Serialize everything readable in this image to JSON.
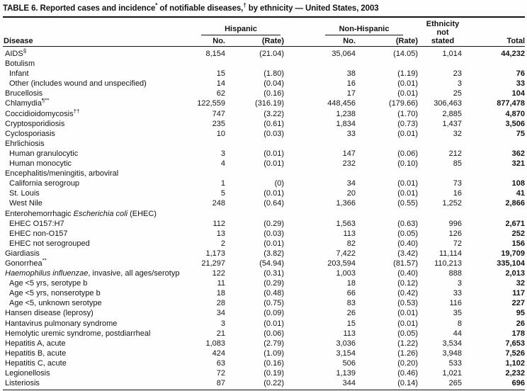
{
  "title": {
    "t1": "TABLE 6. Reported cases and incidence",
    "s1": "*",
    "t2": " of notifiable diseases,",
    "s2": "†",
    "t3": " by ethnicity — United States, 2003"
  },
  "header": {
    "disease": "Disease",
    "hispanic": "Hispanic",
    "non_hispanic": "Non-Hispanic",
    "no": "No.",
    "rate": "(Rate)",
    "ethnicity_not_stated": "Ethnicity\nnot\nstated",
    "total": "Total"
  },
  "rows": [
    {
      "pre": "AIDS",
      "sup": "§",
      "indent": 0,
      "values": [
        "8,154",
        "(21.04)",
        "35,064",
        "(14.05)",
        "1,014",
        "44,232"
      ]
    },
    {
      "pre": "Botulism",
      "indent": 0,
      "values": [
        "",
        "",
        "",
        "",
        "",
        ""
      ]
    },
    {
      "pre": "Infant",
      "indent": 1,
      "values": [
        "15",
        "(1.80)",
        "38",
        "(1.19)",
        "23",
        "76"
      ]
    },
    {
      "pre": "Other (includes wound and unspecified)",
      "indent": 1,
      "values": [
        "14",
        "(0.04)",
        "16",
        "(0.01)",
        "3",
        "33"
      ]
    },
    {
      "pre": "Brucellosis",
      "indent": 0,
      "values": [
        "62",
        "(0.16)",
        "17",
        "(0.01)",
        "25",
        "104"
      ]
    },
    {
      "pre": "Chlamydia",
      "sup": "¶**",
      "indent": 0,
      "values": [
        "122,559",
        "(316.19)",
        "448,456",
        "(179.66)",
        "306,463",
        "877,478"
      ]
    },
    {
      "pre": "Coccidioidomycosis",
      "sup": "††",
      "indent": 0,
      "values": [
        "747",
        "(3.22)",
        "1,238",
        "(1.70)",
        "2,885",
        "4,870"
      ]
    },
    {
      "pre": "Cryptosporidiosis",
      "indent": 0,
      "values": [
        "235",
        "(0.61)",
        "1,834",
        "(0.73)",
        "1,437",
        "3,506"
      ]
    },
    {
      "pre": "Cyclosporiasis",
      "indent": 0,
      "values": [
        "10",
        "(0.03)",
        "33",
        "(0.01)",
        "32",
        "75"
      ]
    },
    {
      "pre": "Ehrlichiosis",
      "indent": 0,
      "values": [
        "",
        "",
        "",
        "",
        "",
        ""
      ]
    },
    {
      "pre": "Human granulocytic",
      "indent": 1,
      "values": [
        "3",
        "(0.01)",
        "147",
        "(0.06)",
        "212",
        "362"
      ]
    },
    {
      "pre": "Human monocytic",
      "indent": 1,
      "values": [
        "4",
        "(0.01)",
        "232",
        "(0.10)",
        "85",
        "321"
      ]
    },
    {
      "pre": "Encephalitis/meningitis, arboviral",
      "indent": 0,
      "values": [
        "",
        "",
        "",
        "",
        "",
        ""
      ]
    },
    {
      "pre": "California serogroup",
      "indent": 1,
      "values": [
        "1",
        "(0)",
        "34",
        "(0.01)",
        "73",
        "108"
      ]
    },
    {
      "pre": "St. Louis",
      "indent": 1,
      "values": [
        "5",
        "(0.01)",
        "20",
        "(0.01)",
        "16",
        "41"
      ]
    },
    {
      "pre": "West Nile",
      "indent": 1,
      "values": [
        "248",
        "(0.64)",
        "1,366",
        "(0.55)",
        "1,252",
        "2,866"
      ]
    },
    {
      "pre": "Enterohemorrhagic ",
      "it": "Escherichia coli",
      "post": " (EHEC)",
      "indent": 0,
      "values": [
        "",
        "",
        "",
        "",
        "",
        ""
      ]
    },
    {
      "pre": "EHEC O157:H7",
      "indent": 1,
      "values": [
        "112",
        "(0.29)",
        "1,563",
        "(0.63)",
        "996",
        "2,671"
      ]
    },
    {
      "pre": "EHEC non-O157",
      "indent": 1,
      "values": [
        "13",
        "(0.03)",
        "113",
        "(0.05)",
        "126",
        "252"
      ]
    },
    {
      "pre": "EHEC not serogrouped",
      "indent": 1,
      "values": [
        "2",
        "(0.01)",
        "82",
        "(0.40)",
        "72",
        "156"
      ]
    },
    {
      "pre": "Giardiasis",
      "indent": 0,
      "values": [
        "1,173",
        "(3.82)",
        "7,422",
        "(3.42)",
        "11,114",
        "19,709"
      ]
    },
    {
      "pre": "Gonorrhea",
      "sup": "**",
      "indent": 0,
      "values": [
        "21,297",
        "(54.94)",
        "203,594",
        "(81.57)",
        "110,213",
        "335,104"
      ]
    },
    {
      "it": "Haemophilus influenzae",
      "post": ", invasive, all ages/serotypes",
      "indent": 0,
      "values": [
        "122",
        "(0.31)",
        "1,003",
        "(0.40)",
        "888",
        "2,013"
      ]
    },
    {
      "pre": "Age <5 yrs, serotype b",
      "indent": 1,
      "values": [
        "11",
        "(0.29)",
        "18",
        "(0.12)",
        "3",
        "32"
      ]
    },
    {
      "pre": "Age <5 yrs, nonserotype b",
      "indent": 1,
      "values": [
        "18",
        "(0.48)",
        "66",
        "(0.42)",
        "33",
        "117"
      ]
    },
    {
      "pre": "Age <5, unknown serotype",
      "indent": 1,
      "values": [
        "28",
        "(0.75)",
        "83",
        "(0.53)",
        "116",
        "227"
      ]
    },
    {
      "pre": "Hansen disease (leprosy)",
      "indent": 0,
      "values": [
        "34",
        "(0.09)",
        "26",
        "(0.01)",
        "35",
        "95"
      ]
    },
    {
      "pre": "Hantavirus pulmonary syndrome",
      "indent": 0,
      "values": [
        "3",
        "(0.01)",
        "15",
        "(0.01)",
        "8",
        "26"
      ]
    },
    {
      "pre": "Hemolytic uremic syndrome, postdiarrheal",
      "indent": 0,
      "values": [
        "21",
        "(0.06)",
        "113",
        "(0.05)",
        "44",
        "178"
      ]
    },
    {
      "pre": "Hepatitis A, acute",
      "indent": 0,
      "values": [
        "1,083",
        "(2.79)",
        "3,036",
        "(1.22)",
        "3,534",
        "7,653"
      ]
    },
    {
      "pre": "Hepatitis B, acute",
      "indent": 0,
      "values": [
        "424",
        "(1.09)",
        "3,154",
        "(1.26)",
        "3,948",
        "7,526"
      ]
    },
    {
      "pre": "Hepatitis C, acute",
      "indent": 0,
      "values": [
        "63",
        "(0.16)",
        "506",
        "(0.20)",
        "533",
        "1,102"
      ]
    },
    {
      "pre": "Legionellosis",
      "indent": 0,
      "values": [
        "72",
        "(0.19)",
        "1,139",
        "(0.46)",
        "1,021",
        "2,232"
      ]
    },
    {
      "pre": "Listeriosis",
      "indent": 0,
      "values": [
        "87",
        "(0.22)",
        "344",
        "(0.14)",
        "265",
        "696"
      ]
    }
  ]
}
